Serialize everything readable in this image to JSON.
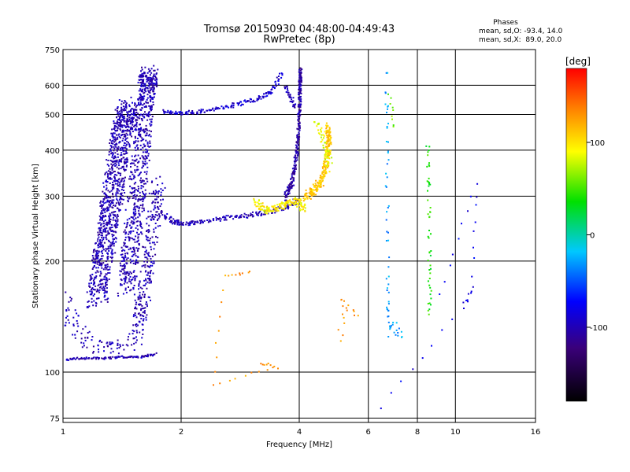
{
  "chart_data": {
    "type": "scatter",
    "title": "Tromsø 20150930 04:48:00-04:49:43",
    "subtitle": "RwPretec (8p)",
    "xlabel": "Frequency [MHz]",
    "ylabel": "Stationary phase Virtual Height [km]",
    "xscale": "log",
    "yscale": "log",
    "xlim": [
      1,
      16
    ],
    "ylim": [
      73,
      750
    ],
    "grid": true,
    "x_tick_labels": [
      {
        "value": 1,
        "label": "1"
      },
      {
        "value": 2,
        "label": "2"
      },
      {
        "value": 4,
        "label": "4"
      },
      {
        "value": 6,
        "label": "6"
      },
      {
        "value": 8,
        "label": "8"
      },
      {
        "value": 10,
        "label": "10"
      },
      {
        "value": 16,
        "label": "16"
      }
    ],
    "y_tick_labels": [
      {
        "value": 75,
        "label": "75"
      },
      {
        "value": 100,
        "label": "100"
      },
      {
        "value": 200,
        "label": "200"
      },
      {
        "value": 300,
        "label": "300"
      },
      {
        "value": 400,
        "label": "400"
      },
      {
        "value": 500,
        "label": "500"
      },
      {
        "value": 600,
        "label": "600"
      },
      {
        "value": 750,
        "label": "750"
      }
    ],
    "phase_box": {
      "header": "Phases",
      "line1": "mean, sd,O: -93.4, 14.0",
      "line2": "mean, sd,X:  89.0, 20.0"
    },
    "colorbar": {
      "unit": "[deg]",
      "range": [
        -180,
        180
      ],
      "ticks": [
        {
          "value": 100,
          "label": "100"
        },
        {
          "value": 0,
          "label": "0"
        },
        {
          "value": -100,
          "label": "-100"
        }
      ]
    },
    "traces": [
      {
        "points": [
          [
            1.02,
            108
          ],
          [
            1.1,
            109
          ],
          [
            1.2,
            109
          ],
          [
            1.3,
            109
          ],
          [
            1.4,
            110
          ],
          [
            1.5,
            110
          ],
          [
            1.6,
            110
          ],
          [
            1.72,
            112
          ]
        ],
        "phase": -100,
        "n": 2,
        "dx": 0.012,
        "dy": 0.006
      },
      {
        "points": [
          [
            1.0,
            160
          ],
          [
            1.05,
            140
          ],
          [
            1.1,
            125
          ],
          [
            1.2,
            118
          ],
          [
            1.3,
            115
          ],
          [
            1.4,
            118
          ],
          [
            1.55,
            125
          ]
        ],
        "phase": -100,
        "n": 2,
        "dx": 0.05,
        "dy": 0.05
      },
      {
        "points": [
          [
            1.22,
            160
          ],
          [
            1.26,
            200
          ],
          [
            1.3,
            250
          ],
          [
            1.34,
            300
          ],
          [
            1.38,
            380
          ],
          [
            1.42,
            460
          ],
          [
            1.45,
            520
          ]
        ],
        "phase": -100,
        "n": 20,
        "dx": 0.06,
        "dy": 0.07
      },
      {
        "points": [
          [
            1.45,
            170
          ],
          [
            1.5,
            230
          ],
          [
            1.55,
            320
          ],
          [
            1.6,
            450
          ],
          [
            1.63,
            580
          ],
          [
            1.66,
            640
          ]
        ],
        "phase": -100,
        "n": 18,
        "dx": 0.05,
        "dy": 0.06
      },
      {
        "points": [
          [
            1.55,
            130
          ],
          [
            1.6,
            160
          ],
          [
            1.65,
            200
          ],
          [
            1.7,
            260
          ],
          [
            1.75,
            320
          ]
        ],
        "phase": -100,
        "n": 8,
        "dx": 0.04,
        "dy": 0.06
      },
      {
        "points": [
          [
            1.8,
            270
          ],
          [
            1.9,
            256
          ],
          [
            2.0,
            253
          ],
          [
            2.2,
            255
          ],
          [
            2.5,
            260
          ],
          [
            2.8,
            265
          ],
          [
            3.1,
            268
          ],
          [
            3.4,
            272
          ],
          [
            3.7,
            280
          ],
          [
            3.95,
            292
          ]
        ],
        "phase": -100,
        "n": 3,
        "dx": 0.015,
        "dy": 0.015
      },
      {
        "points": [
          [
            3.1,
            292
          ],
          [
            3.3,
            272
          ],
          [
            3.5,
            278
          ],
          [
            3.7,
            286
          ],
          [
            3.95,
            292
          ],
          [
            4.1,
            278
          ]
        ],
        "phase": 95,
        "n": 4,
        "dx": 0.02,
        "dy": 0.02
      },
      {
        "points": [
          [
            3.7,
            300
          ],
          [
            3.85,
            330
          ],
          [
            3.95,
            400
          ],
          [
            4.0,
            500
          ],
          [
            4.02,
            600
          ],
          [
            4.03,
            650
          ]
        ],
        "phase": -105,
        "n": 7,
        "dx": 0.008,
        "dy": 0.03
      },
      {
        "points": [
          [
            4.15,
            300
          ],
          [
            4.35,
            310
          ],
          [
            4.55,
            330
          ],
          [
            4.7,
            370
          ],
          [
            4.75,
            420
          ],
          [
            4.75,
            460
          ]
        ],
        "phase": 110,
        "n": 6,
        "dx": 0.015,
        "dy": 0.03
      },
      {
        "points": [
          [
            4.4,
            480
          ],
          [
            4.6,
            440
          ],
          [
            4.7,
            400
          ],
          [
            4.8,
            360
          ]
        ],
        "phase": 85,
        "n": 2,
        "dx": 0.02,
        "dy": 0.03
      },
      {
        "points": [
          [
            1.8,
            510
          ],
          [
            2.0,
            505
          ],
          [
            2.2,
            508
          ],
          [
            2.5,
            518
          ],
          [
            2.8,
            535
          ],
          [
            3.1,
            550
          ],
          [
            3.4,
            575
          ],
          [
            3.6,
            645
          ]
        ],
        "phase": -90,
        "n": 3,
        "dx": 0.015,
        "dy": 0.012
      },
      {
        "points": [
          [
            3.7,
            600
          ],
          [
            3.8,
            560
          ],
          [
            3.9,
            530
          ]
        ],
        "phase": -100,
        "n": 2,
        "dx": 0.01,
        "dy": 0.02
      },
      {
        "points": [
          [
            6.7,
            620
          ],
          [
            6.7,
            380
          ],
          [
            6.72,
            180
          ],
          [
            6.75,
            130
          ],
          [
            7.3,
            130
          ]
        ],
        "phase": -30,
        "n": 2,
        "dx": 0.01,
        "dy": 0.05
      },
      {
        "points": [
          [
            8.5,
            410
          ],
          [
            8.55,
            300
          ],
          [
            8.6,
            200
          ],
          [
            8.6,
            140
          ]
        ],
        "phase": 40,
        "n": 2,
        "dx": 0.01,
        "dy": 0.05
      },
      {
        "points": [
          [
            6.8,
            560
          ],
          [
            7.0,
            460
          ]
        ],
        "phase": 60,
        "n": 1,
        "dx": 0.01,
        "dy": 0.02
      },
      {
        "points": [
          [
            3.2,
            106
          ],
          [
            3.5,
            103
          ],
          [
            2.4,
            92
          ],
          [
            2.6,
            183
          ],
          [
            3.0,
            186
          ]
        ],
        "phase": 130,
        "n": 1,
        "dx": 0.01,
        "dy": 0.01
      },
      {
        "points": [
          [
            6.5,
            80
          ],
          [
            10.5,
            150
          ],
          [
            11.1,
            170
          ],
          [
            11.3,
            330
          ],
          [
            9.2,
            160
          ]
        ],
        "phase": -80,
        "n": 1,
        "dx": 0.01,
        "dy": 0.02
      },
      {
        "points": [
          [
            5.1,
            120
          ],
          [
            5.2,
            160
          ],
          [
            5.6,
            140
          ]
        ],
        "phase": 130,
        "n": 1,
        "dx": 0.02,
        "dy": 0.02
      }
    ]
  }
}
